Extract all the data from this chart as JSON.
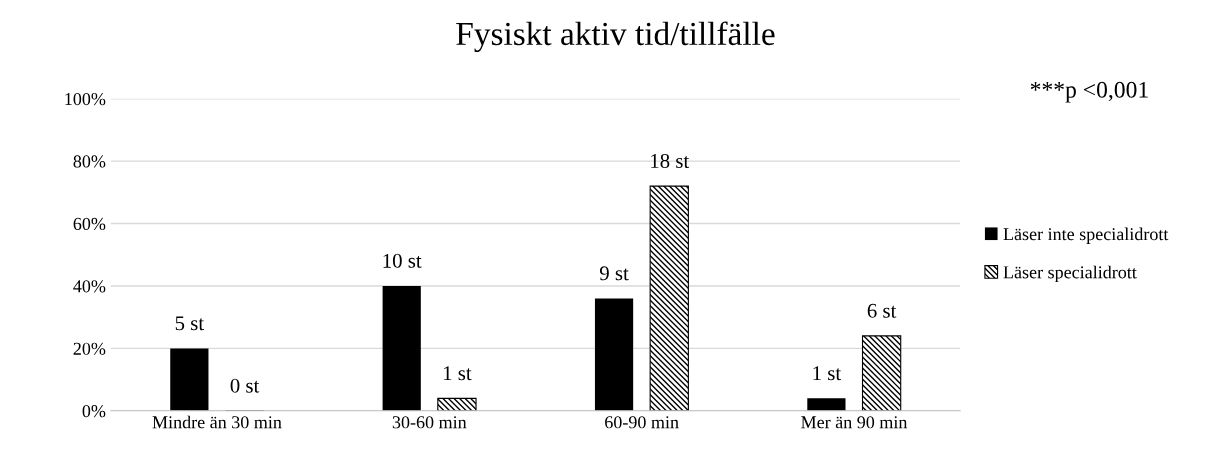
{
  "chart_data": {
    "type": "bar",
    "title": "Fysiskt aktiv tid/tillfälle",
    "categories": [
      "Mindre än 30 min",
      "30-60 min",
      "60-90 min",
      "Mer än 90 min"
    ],
    "series": [
      {
        "name": "Läser inte specialidrott",
        "color": "#000000",
        "values": [
          20,
          40,
          36,
          4
        ]
      },
      {
        "name": "Läser specialidrott",
        "color": "#000000",
        "values": [
          0,
          4,
          72,
          24
        ]
      }
    ],
    "ylim": [
      0,
      100
    ],
    "yticks": [
      {
        "value": 0,
        "label": "0%"
      },
      {
        "value": 20,
        "label": "20%"
      },
      {
        "value": 40,
        "label": "40%"
      },
      {
        "value": 60,
        "label": "60%"
      },
      {
        "value": 80,
        "label": "80%"
      },
      {
        "value": 100,
        "label": "100%"
      }
    ],
    "grid": "y",
    "legend": "right",
    "annotations": [
      "***p <0,001",
      "5 st",
      "10 st",
      "9 st",
      "1 st",
      "0 st",
      "1 st",
      "18 st",
      "6 st"
    ]
  }
}
